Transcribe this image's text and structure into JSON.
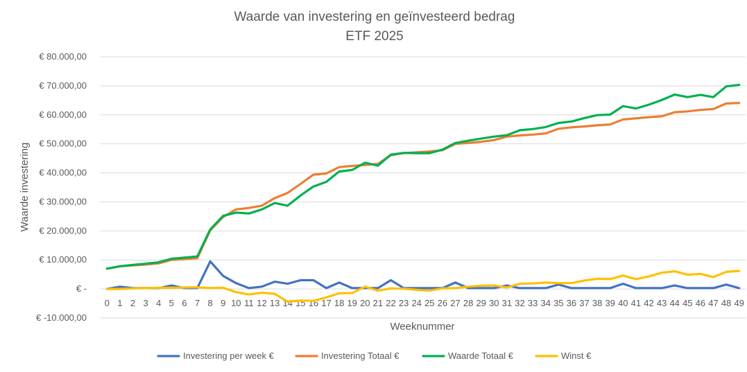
{
  "chart_data": {
    "type": "line",
    "title": "Waarde van investering en geïnvesteerd bedrag",
    "subtitle": "ETF 2025",
    "xlabel": "Weeknummer",
    "ylabel": "Waarde investering",
    "ylim": [
      -10000,
      80000
    ],
    "y_step": 10000,
    "y_tick_labels": [
      "€ -10.000,00",
      "€ -",
      "€ 10.000,00",
      "€ 20.000,00",
      "€ 30.000,00",
      "€ 40.000,00",
      "€ 50.000,00",
      "€ 60.000,00",
      "€ 70.000,00",
      "€ 80.000,00"
    ],
    "grid": true,
    "legend_position": "bottom",
    "x": [
      0,
      1,
      2,
      3,
      4,
      5,
      6,
      7,
      8,
      9,
      10,
      11,
      12,
      13,
      14,
      15,
      16,
      17,
      18,
      19,
      20,
      21,
      22,
      23,
      24,
      25,
      26,
      27,
      28,
      29,
      30,
      31,
      32,
      33,
      34,
      35,
      36,
      37,
      38,
      39,
      40,
      41,
      42,
      43,
      44,
      45,
      46,
      47,
      48,
      49
    ],
    "series": [
      {
        "name": "Investering per week €",
        "color": "#4472C4",
        "values": [
          0,
          800,
          300,
          300,
          300,
          1200,
          300,
          300,
          9500,
          4500,
          2000,
          300,
          800,
          2500,
          1800,
          3000,
          3000,
          300,
          2200,
          300,
          300,
          300,
          3000,
          300,
          300,
          300,
          300,
          2200,
          300,
          300,
          300,
          1200,
          300,
          300,
          300,
          1500,
          300,
          300,
          300,
          300,
          1800,
          300,
          300,
          300,
          1200,
          300,
          300,
          300,
          1500,
          300
        ]
      },
      {
        "name": "Investering Totaal €",
        "color": "#ED7D31",
        "values": [
          7000,
          7800,
          8100,
          8400,
          8800,
          10000,
          10300,
          10600,
          20200,
          24800,
          27400,
          27900,
          28700,
          31300,
          33100,
          36200,
          39400,
          39800,
          42000,
          42400,
          42700,
          43100,
          46100,
          46800,
          47100,
          47400,
          47800,
          50000,
          50300,
          50700,
          51300,
          52500,
          52900,
          53200,
          53600,
          55200,
          55700,
          56000,
          56400,
          56700,
          58400,
          58800,
          59200,
          59500,
          60900,
          61200,
          61700,
          62000,
          63900,
          64100
        ]
      },
      {
        "name": "Waarde Totaal €",
        "color": "#00B050",
        "values": [
          7000,
          7800,
          8300,
          8700,
          9200,
          10400,
          10800,
          11200,
          20500,
          25200,
          26300,
          26000,
          27400,
          29600,
          28700,
          32200,
          35300,
          36900,
          40500,
          41000,
          43500,
          42500,
          46300,
          46900,
          46800,
          46800,
          48000,
          50300,
          51100,
          51800,
          52500,
          53000,
          54700,
          55100,
          55800,
          57200,
          57700,
          58900,
          59900,
          60100,
          63000,
          62200,
          63500,
          65100,
          67000,
          66100,
          66900,
          66100,
          69800,
          70300
        ]
      },
      {
        "name": "Winst €",
        "color": "#FFC000",
        "values": [
          0,
          0,
          200,
          300,
          400,
          400,
          500,
          600,
          300,
          400,
          -1100,
          -1900,
          -1300,
          -1700,
          -4400,
          -4000,
          -4100,
          -2900,
          -1500,
          -1400,
          800,
          -600,
          200,
          100,
          -300,
          -600,
          200,
          300,
          800,
          1100,
          1200,
          500,
          1800,
          1900,
          2200,
          2000,
          2000,
          2900,
          3500,
          3400,
          4600,
          3400,
          4300,
          5600,
          6100,
          4900,
          5200,
          4100,
          5900,
          6200
        ]
      }
    ]
  }
}
